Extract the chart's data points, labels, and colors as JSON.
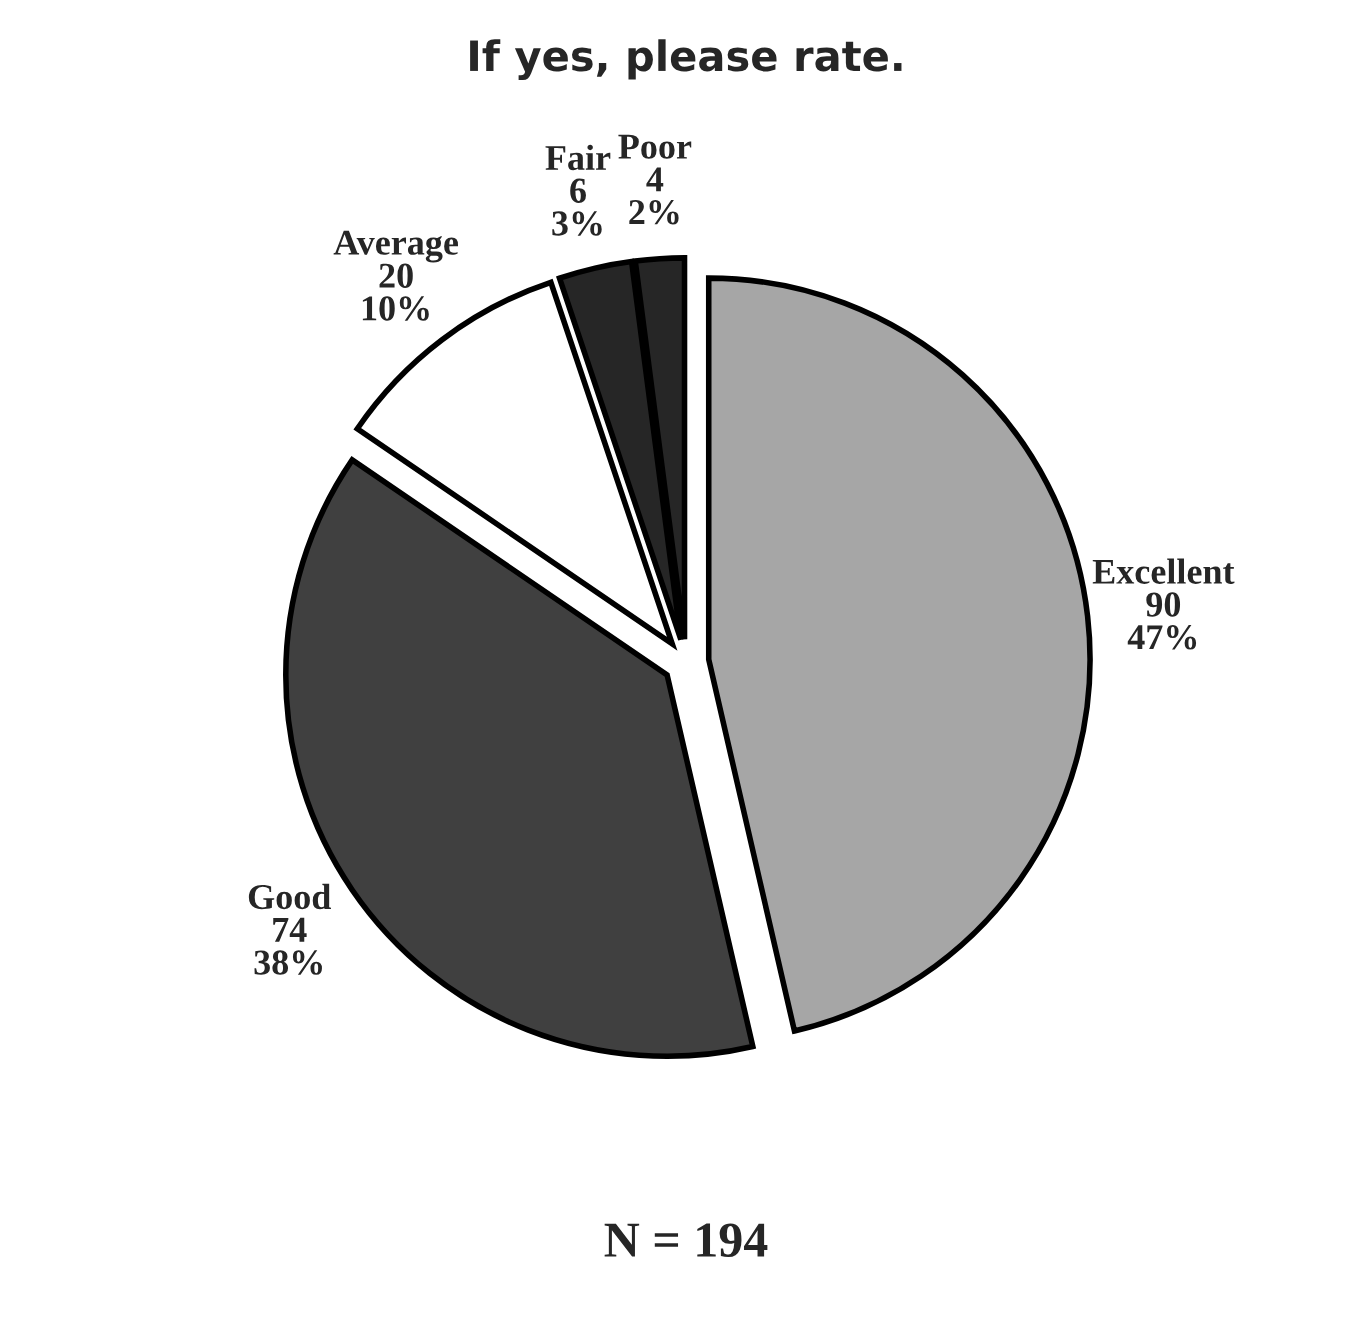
{
  "chart_data": {
    "type": "pie",
    "title": "If yes, please rate.",
    "categories": [
      "Excellent",
      "Good",
      "Average",
      "Fair",
      "Poor"
    ],
    "values": [
      90,
      74,
      20,
      6,
      4
    ],
    "value_labels": [
      "90\n47%",
      "74\n38%",
      "20\n10%",
      "6\n3%",
      "4\n2%"
    ],
    "colors": [
      "#a6a6a6",
      "#404040",
      "#ffffff",
      "#262626",
      "#262626"
    ],
    "annotations": [
      "N = 194"
    ],
    "legend": false
  }
}
